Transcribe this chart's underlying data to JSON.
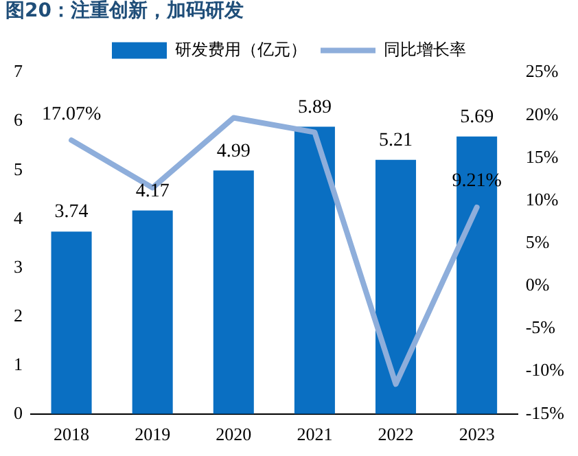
{
  "chart_data": {
    "type": "bar",
    "title": "图20：注重创新，加码研发",
    "categories": [
      "2018",
      "2019",
      "2020",
      "2021",
      "2022",
      "2023"
    ],
    "series": [
      {
        "name": "研发费用（亿元）",
        "color": "#0a6fc2",
        "values": [
          3.74,
          4.17,
          4.99,
          5.89,
          5.21,
          5.69
        ],
        "value_labels": [
          "3.74",
          "4.17",
          "4.99",
          "5.89",
          "5.21",
          "5.69"
        ]
      },
      {
        "name": "同比增长率",
        "type": "line",
        "axis": "y2",
        "color": "#8eaedb",
        "values": [
          17.07,
          11.5,
          19.7,
          18.0,
          -11.5,
          9.21
        ],
        "value_labels": [
          "17.07%",
          null,
          null,
          null,
          null,
          "9.21%"
        ]
      }
    ],
    "ylim": [
      0,
      7
    ],
    "yticks": [
      0,
      1,
      2,
      3,
      4,
      5,
      6,
      7
    ],
    "y2lim": [
      -15,
      25
    ],
    "y2ticks": [
      {
        "value": -15,
        "label": "-15%"
      },
      {
        "value": -10,
        "label": "-10%"
      },
      {
        "value": -5,
        "label": "-5%"
      },
      {
        "value": 0,
        "label": "0%"
      },
      {
        "value": 5,
        "label": "5%"
      },
      {
        "value": 10,
        "label": "10%"
      },
      {
        "value": 15,
        "label": "15%"
      },
      {
        "value": 20,
        "label": "20%"
      },
      {
        "value": 25,
        "label": "25%"
      }
    ],
    "grid": false,
    "legend": "top",
    "marker": "none",
    "line_style": "solid"
  }
}
